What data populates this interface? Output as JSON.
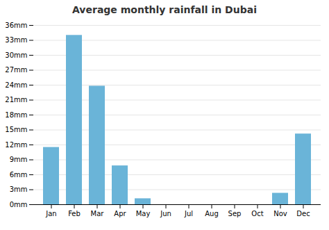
{
  "chart_data": {
    "type": "bar",
    "title": "Average monthly rainfall in Dubai",
    "categories": [
      "Jan",
      "Feb",
      "Mar",
      "Apr",
      "May",
      "Jun",
      "Jul",
      "Aug",
      "Sep",
      "Oct",
      "Nov",
      "Dec"
    ],
    "values": [
      11.5,
      34.0,
      23.8,
      7.8,
      1.2,
      0.0,
      0.0,
      0.0,
      0.0,
      0.0,
      2.3,
      14.2
    ],
    "color": "#6ab4d8",
    "ylim": [
      0,
      36
    ],
    "yticks": [
      {
        "value": 0,
        "label": "0mm"
      },
      {
        "value": 3,
        "label": "3mm"
      },
      {
        "value": 6,
        "label": "6mm"
      },
      {
        "value": 9,
        "label": "9mm"
      },
      {
        "value": 12,
        "label": "12mm"
      },
      {
        "value": 15,
        "label": "15mm"
      },
      {
        "value": 18,
        "label": "18mm"
      },
      {
        "value": 21,
        "label": "21mm"
      },
      {
        "value": 24,
        "label": "24mm"
      },
      {
        "value": 27,
        "label": "27mm"
      },
      {
        "value": 30,
        "label": "30mm"
      },
      {
        "value": 33,
        "label": "33mm"
      },
      {
        "value": 36,
        "label": "36mm"
      }
    ],
    "grid": true
  }
}
